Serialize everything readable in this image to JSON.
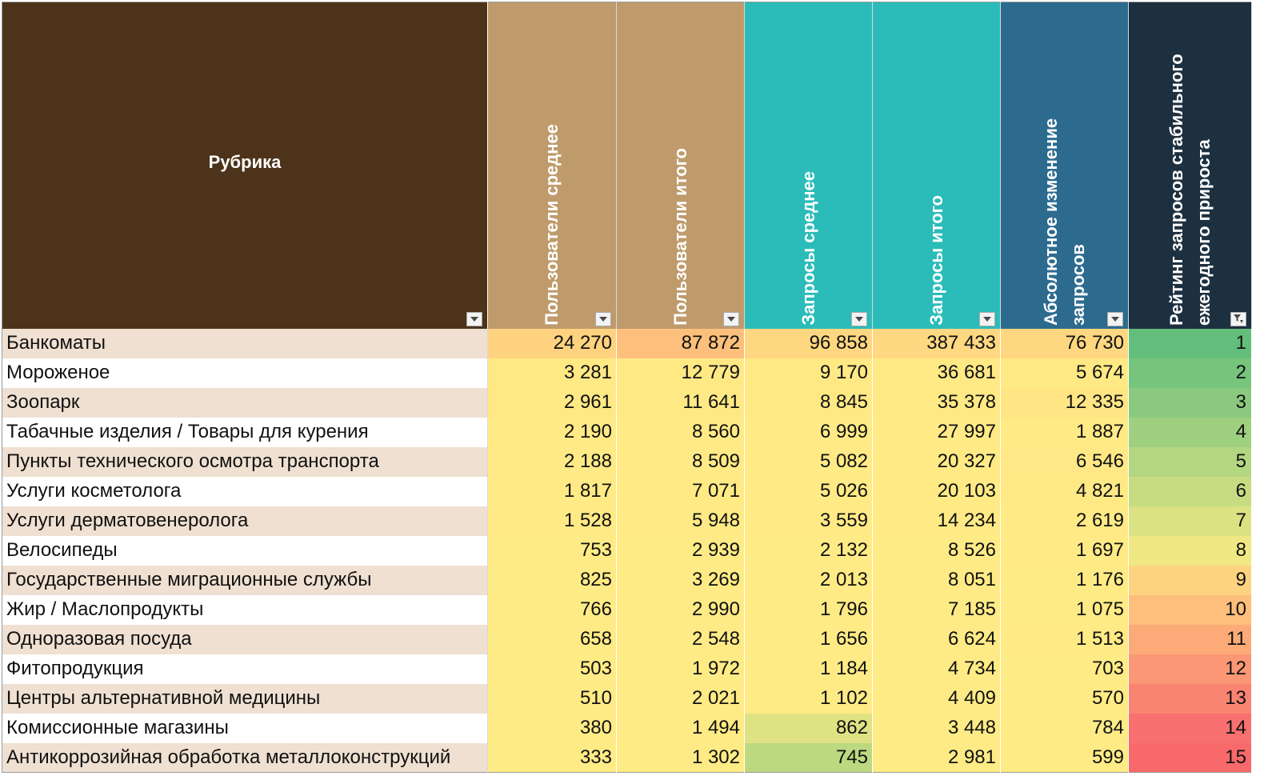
{
  "headers": {
    "rubric": "Рубрика",
    "users_avg": "Пользователи среднее",
    "users_total": "Пользователи итого",
    "queries_avg": "Запросы среднее",
    "queries_total": "Запросы итого",
    "abs_change": "Абсолютное изменение запросов",
    "rating": "Рейтинг запросов стабильного ежегодного прироста"
  },
  "colors": {
    "rubric_header": "#4d3319",
    "users_header": "#bf9b6c",
    "queries_header": "#2bbcb9",
    "change_header": "#2c6b8e",
    "rating_header": "#1c3040",
    "row_stripe": "#efe0d1"
  },
  "rows": [
    {
      "name": "Банкоматы",
      "users_avg": "24 270",
      "users_total": "87 872",
      "queries_avg": "96 858",
      "queries_total": "387 433",
      "abs_change": "76 730",
      "rank": "1",
      "bg": [
        "#fed27f",
        "#fdc07c",
        "#fed780",
        "#ffd881",
        "#fed780",
        "#63be7b"
      ]
    },
    {
      "name": "Мороженое",
      "users_avg": "3 281",
      "users_total": "12 779",
      "queries_avg": "9 170",
      "queries_total": "36 681",
      "abs_change": "5 674",
      "rank": "2",
      "bg": [
        "#ffe985",
        "#ffe985",
        "#ffe985",
        "#ffe985",
        "#ffe985",
        "#77c47d"
      ]
    },
    {
      "name": "Зоопарк",
      "users_avg": "2 961",
      "users_total": "11 641",
      "queries_avg": "8 845",
      "queries_total": "35 378",
      "abs_change": "12 335",
      "rank": "3",
      "bg": [
        "#ffe985",
        "#ffe985",
        "#ffe985",
        "#ffe985",
        "#ffe584",
        "#8bca7e"
      ]
    },
    {
      "name": "Табачные изделия / Товары для курения",
      "users_avg": "2 190",
      "users_total": "8 560",
      "queries_avg": "6 999",
      "queries_total": "27 997",
      "abs_change": "1 887",
      "rank": "4",
      "bg": [
        "#ffea85",
        "#ffea85",
        "#ffea85",
        "#ffea85",
        "#ffea85",
        "#9fd07f"
      ]
    },
    {
      "name": "Пункты технического осмотра транспорта",
      "users_avg": "2 188",
      "users_total": "8 509",
      "queries_avg": "5 082",
      "queries_total": "20 327",
      "abs_change": "6 546",
      "rank": "5",
      "bg": [
        "#ffea85",
        "#ffea85",
        "#ffea85",
        "#ffea85",
        "#ffe885",
        "#b3d680"
      ]
    },
    {
      "name": "Услуги косметолога",
      "users_avg": "1 817",
      "users_total": "7 071",
      "queries_avg": "5 026",
      "queries_total": "20 103",
      "abs_change": "4 821",
      "rank": "6",
      "bg": [
        "#ffea85",
        "#ffea85",
        "#ffea85",
        "#ffea85",
        "#ffe985",
        "#c7dc81"
      ]
    },
    {
      "name": "Услуги дерматовенеролога",
      "users_avg": "1 528",
      "users_total": "5 948",
      "queries_avg": "3 559",
      "queries_total": "14 234",
      "abs_change": "2 619",
      "rank": "7",
      "bg": [
        "#ffea85",
        "#ffea85",
        "#ffea85",
        "#ffea85",
        "#ffea85",
        "#dbe282"
      ]
    },
    {
      "name": "Велосипеды",
      "users_avg": "753",
      "users_total": "2 939",
      "queries_avg": "2 132",
      "queries_total": "8 526",
      "abs_change": "1 697",
      "rank": "8",
      "bg": [
        "#ffeb85",
        "#ffeb85",
        "#ffeb85",
        "#ffeb85",
        "#ffea85",
        "#f0e883"
      ]
    },
    {
      "name": "Государственные миграционные службы",
      "users_avg": "825",
      "users_total": "3 269",
      "queries_avg": "2 013",
      "queries_total": "8 051",
      "abs_change": "1 176",
      "rank": "9",
      "bg": [
        "#ffeb85",
        "#ffeb85",
        "#ffeb85",
        "#ffeb85",
        "#ffeb85",
        "#fed380"
      ]
    },
    {
      "name": "Жир / Маслопродукты",
      "users_avg": "766",
      "users_total": "2 990",
      "queries_avg": "1 796",
      "queries_total": "7 185",
      "abs_change": "1 075",
      "rank": "10",
      "bg": [
        "#ffeb85",
        "#ffeb85",
        "#ffeb85",
        "#ffeb85",
        "#ffeb85",
        "#fdbf7b"
      ]
    },
    {
      "name": "Одноразовая посуда",
      "users_avg": "658",
      "users_total": "2 548",
      "queries_avg": "1 656",
      "queries_total": "6 624",
      "abs_change": "1 513",
      "rank": "11",
      "bg": [
        "#ffeb85",
        "#ffeb85",
        "#ffeb85",
        "#ffeb85",
        "#ffea85",
        "#fcab78"
      ]
    },
    {
      "name": "Фитопродукция",
      "users_avg": "503",
      "users_total": "1 972",
      "queries_avg": "1 184",
      "queries_total": "4 734",
      "abs_change": "703",
      "rank": "12",
      "bg": [
        "#ffeb85",
        "#ffeb85",
        "#ffeb85",
        "#ffeb85",
        "#ffeb85",
        "#fb9775"
      ]
    },
    {
      "name": "Центры альтернативной медицины",
      "users_avg": "510",
      "users_total": "2 021",
      "queries_avg": "1 102",
      "queries_total": "4 409",
      "abs_change": "570",
      "rank": "13",
      "bg": [
        "#ffeb85",
        "#ffeb85",
        "#ffeb85",
        "#ffeb85",
        "#ffeb85",
        "#fa8472"
      ]
    },
    {
      "name": "Комиссионные магазины",
      "users_avg": "380",
      "users_total": "1 494",
      "queries_avg": "862",
      "queries_total": "3 448",
      "abs_change": "784",
      "rank": "14",
      "bg": [
        "#ffeb85",
        "#ffeb85",
        "#dfe283",
        "#ffeb85",
        "#ffeb85",
        "#f8706f"
      ]
    },
    {
      "name": "Антикоррозийная обработка металлоконструкций",
      "users_avg": "333",
      "users_total": "1 302",
      "queries_avg": "745",
      "queries_total": "2 981",
      "abs_change": "599",
      "rank": "15",
      "bg": [
        "#ffeb85",
        "#ffeb85",
        "#bcd980",
        "#ffeb85",
        "#ffeb85",
        "#f8696b"
      ]
    }
  ]
}
